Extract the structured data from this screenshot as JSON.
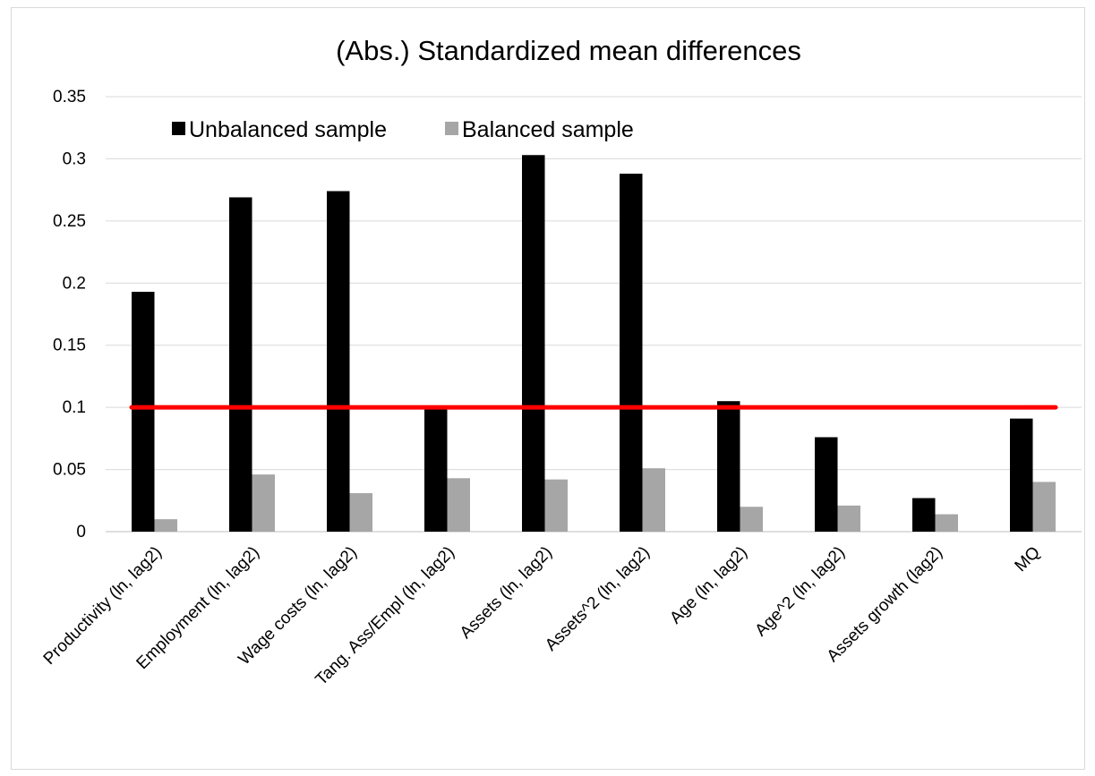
{
  "chart_data": {
    "type": "bar",
    "title": "(Abs.) Standardized mean differences",
    "xlabel": "",
    "ylabel": "",
    "ylim": [
      0,
      0.35
    ],
    "yticks": [
      "0",
      "0.05",
      "0.1",
      "0.15",
      "0.2",
      "0.25",
      "0.3",
      "0.35"
    ],
    "ytick_values": [
      0,
      0.05,
      0.1,
      0.15,
      0.2,
      0.25,
      0.3,
      0.35
    ],
    "grid": true,
    "legend_position": "top-left",
    "categories": [
      "Productivity (ln, lag2)",
      "Employment (ln, lag2)",
      "Wage costs (ln, lag2)",
      "Tang. Ass/Empl (ln, lag2)",
      "Assets (ln, lag2)",
      "Assets^2 (ln, lag2)",
      "Age (ln, lag2)",
      "Age^2 (ln, lag2)",
      "Assets growth (lag2)",
      "MQ"
    ],
    "series": [
      {
        "name": "Unbalanced sample",
        "color": "#000000",
        "values": [
          0.193,
          0.269,
          0.274,
          0.1,
          0.303,
          0.288,
          0.105,
          0.076,
          0.027,
          0.091
        ]
      },
      {
        "name": "Balanced sample",
        "color": "#a6a6a6",
        "values": [
          0.01,
          0.046,
          0.031,
          0.043,
          0.042,
          0.051,
          0.02,
          0.021,
          0.014,
          0.04
        ]
      }
    ],
    "reference_line": {
      "value": 0.1,
      "color": "#ff0000"
    }
  }
}
